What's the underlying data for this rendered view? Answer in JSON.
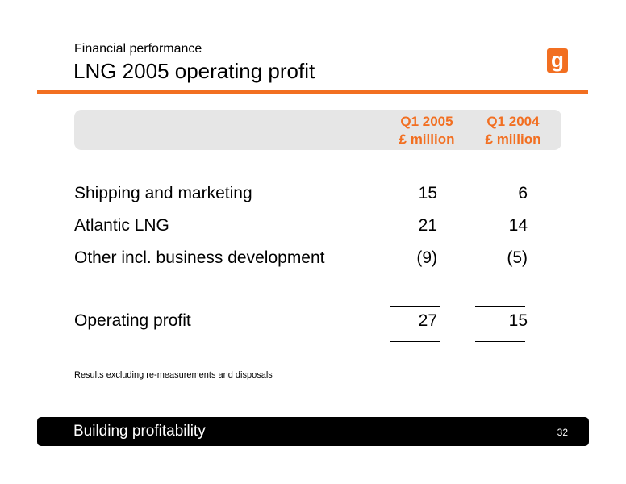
{
  "header": {
    "subtitle": "Financial performance",
    "title": "LNG 2005 operating profit",
    "logo_letter": "g"
  },
  "table": {
    "columns": [
      {
        "line1": "Q1 2005",
        "line2": "£ million"
      },
      {
        "line1": "Q1 2004",
        "line2": "£ million"
      }
    ],
    "rows": [
      {
        "label": "Shipping and marketing",
        "values": [
          "15",
          "6"
        ]
      },
      {
        "label": "Atlantic LNG",
        "values": [
          "21",
          "14"
        ]
      },
      {
        "label": "Other incl. business development",
        "values": [
          "(9)",
          "(5)"
        ]
      }
    ],
    "total": {
      "label": "Operating profit",
      "values": [
        "27",
        "15"
      ]
    }
  },
  "footnote": "Results excluding re-measurements and disposals",
  "footer": {
    "text": "Building profitability",
    "page_number": "32"
  },
  "colors": {
    "accent": "#f26f21",
    "header_band": "#e6e6e6",
    "footer_bg": "#000000"
  }
}
